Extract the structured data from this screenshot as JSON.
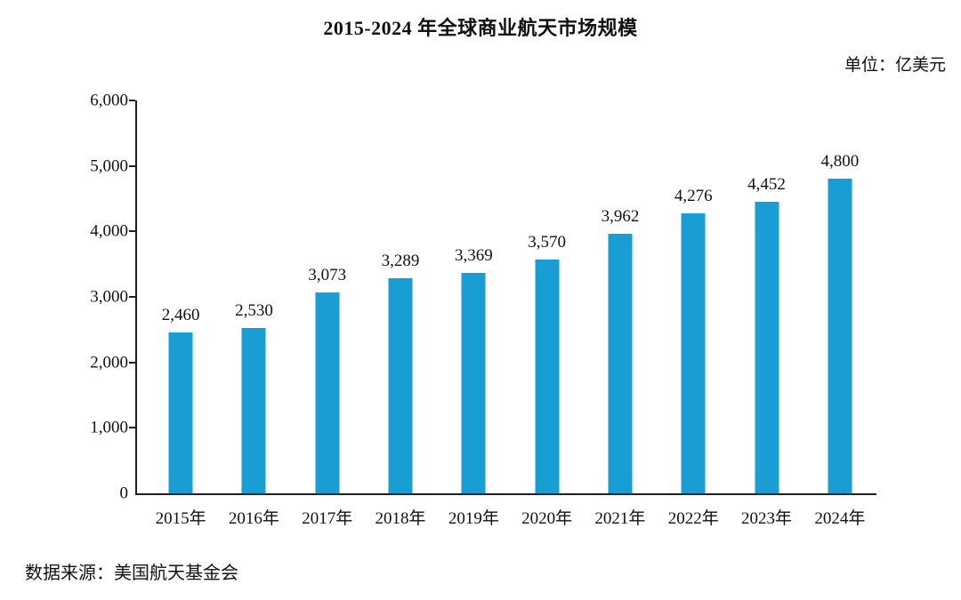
{
  "header": {
    "title": "2015-2024 年全球商业航天市场规模",
    "unit_label": "单位：亿美元"
  },
  "footer": {
    "source": "数据来源：美国航天基金会"
  },
  "chart_data": {
    "type": "bar",
    "title": "2015-2024 年全球商业航天市场规模",
    "unit": "亿美元",
    "categories": [
      "2015年",
      "2016年",
      "2017年",
      "2018年",
      "2019年",
      "2020年",
      "2021年",
      "2022年",
      "2023年",
      "2024年"
    ],
    "values": [
      2460,
      2530,
      3073,
      3289,
      3369,
      3570,
      3962,
      4276,
      4452,
      4800
    ],
    "value_labels": [
      "2,460",
      "2,530",
      "3,073",
      "3,289",
      "3,369",
      "3,570",
      "3,962",
      "4,276",
      "4,452",
      "4,800"
    ],
    "xlabel": "",
    "ylabel": "",
    "ylim": [
      0,
      6000
    ],
    "yticks": [
      0,
      1000,
      2000,
      3000,
      4000,
      5000,
      6000
    ],
    "ytick_labels": [
      "0",
      "1,000",
      "2,000",
      "3,000",
      "4,000",
      "5,000",
      "6,000"
    ],
    "grid": false,
    "legend": null,
    "bar_color": "#189ED2",
    "axis_color": "#1f1f1f",
    "source": "数据来源：美国航天基金会"
  }
}
